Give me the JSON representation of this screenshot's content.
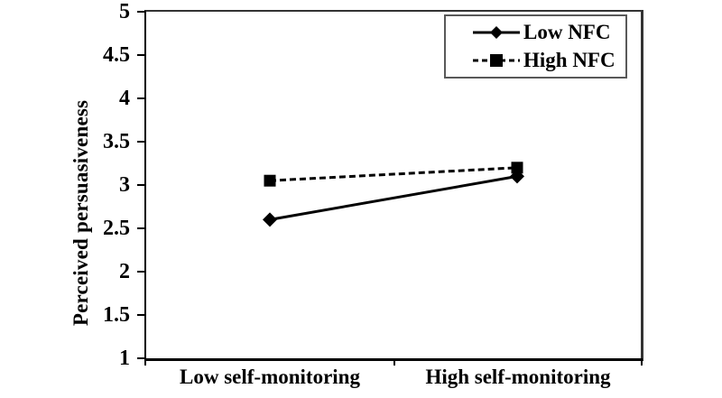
{
  "chart_data": {
    "type": "line",
    "title": "",
    "xlabel": "",
    "ylabel": "Perceived persuasiveness",
    "categories": [
      "Low self-monitoring",
      "High self-monitoring"
    ],
    "series": [
      {
        "name": "Low NFC",
        "values": [
          2.6,
          3.1
        ],
        "line_style": "solid",
        "marker": "diamond"
      },
      {
        "name": "High NFC",
        "values": [
          3.05,
          3.2
        ],
        "line_style": "dashed",
        "marker": "square"
      }
    ],
    "ylim": [
      1,
      5
    ],
    "ytick_step": 0.5,
    "ytick_labels": [
      "5",
      "4.5",
      "4",
      "3.5",
      "3",
      "2.5",
      "2",
      "1.5",
      "1"
    ],
    "grid": false,
    "legend_position": "top-right"
  },
  "colors": {
    "series_line": "#000000",
    "plot_border": "#333333",
    "axis_line": "#000000",
    "legend_border": "#595959",
    "background": "#ffffff",
    "text": "#000000"
  },
  "legend": {
    "entries": [
      {
        "label": "Low NFC",
        "icon": "diamond-marker-icon",
        "line": "solid-line"
      },
      {
        "label": "High NFC",
        "icon": "square-marker-icon",
        "line": "dashed-line"
      }
    ]
  }
}
